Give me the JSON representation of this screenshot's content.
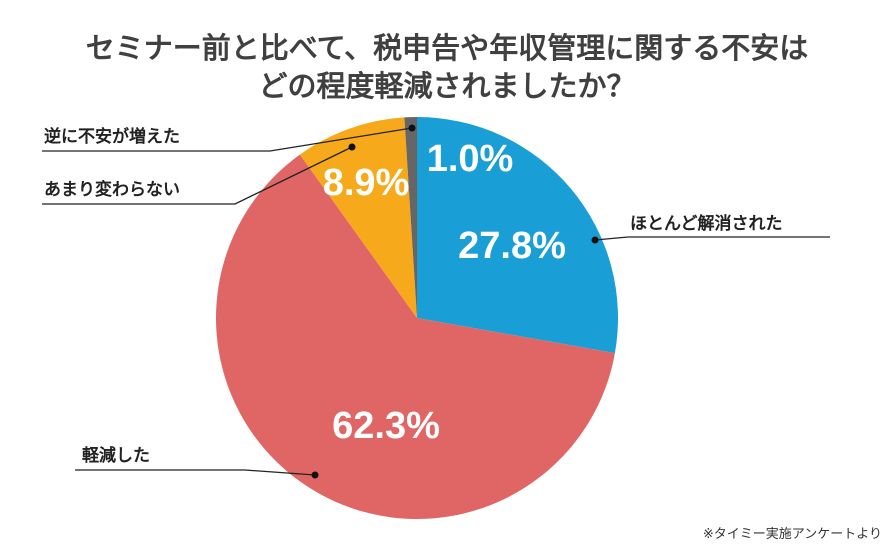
{
  "chart_data": {
    "type": "pie",
    "title": [
      "セミナー前と比べて、税申告や年収管理に関する不安は",
      "どの程度軽減されましたか？"
    ],
    "slices": [
      {
        "label": "ほとんど解消された",
        "value": 27.8,
        "display": "27.8%",
        "color": "#1a9ed6"
      },
      {
        "label": "軽減した",
        "value": 62.3,
        "display": "62.3%",
        "color": "#e06666"
      },
      {
        "label": "あまり変わらない",
        "value": 8.9,
        "display": "8.9%",
        "color": "#f6a91b"
      },
      {
        "label": "逆に不安が増えた",
        "value": 1.0,
        "display": "1.0%",
        "color": "#666666"
      }
    ],
    "start_angle": "top, clockwise",
    "note": "※タイミー実施アンケートより"
  }
}
